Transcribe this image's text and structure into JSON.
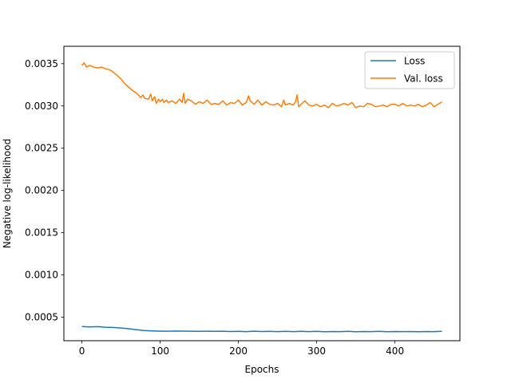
{
  "chart_data": {
    "type": "line",
    "title": "",
    "xlabel": "Epochs",
    "ylabel": "Negative log-likelihood",
    "xlim": [
      -23,
      483
    ],
    "ylim": [
      0.000222,
      0.003706
    ],
    "xticks": [
      0,
      100,
      200,
      300,
      400
    ],
    "xtick_labels": [
      "0",
      "100",
      "200",
      "300",
      "400"
    ],
    "yticks": [
      0.0005,
      0.001,
      0.0015,
      0.002,
      0.0025,
      0.003,
      0.0035
    ],
    "ytick_labels": [
      "0.0005",
      "0.0010",
      "0.0015",
      "0.0020",
      "0.0025",
      "0.0030",
      "0.0035"
    ],
    "grid": false,
    "legend_position": "top-right",
    "series": [
      {
        "name": "Loss",
        "color": "#1f77b4",
        "x": [
          0,
          10,
          20,
          30,
          40,
          50,
          60,
          70,
          80,
          90,
          100,
          110,
          120,
          130,
          140,
          150,
          160,
          170,
          180,
          190,
          200,
          210,
          220,
          230,
          240,
          250,
          260,
          270,
          280,
          290,
          300,
          310,
          320,
          330,
          340,
          350,
          360,
          370,
          380,
          390,
          400,
          410,
          420,
          430,
          440,
          450,
          460
        ],
        "y": [
          0.00039,
          0.000385,
          0.000388,
          0.000382,
          0.000379,
          0.000372,
          0.000364,
          0.000352,
          0.000342,
          0.000338,
          0.000335,
          0.000334,
          0.000336,
          0.000335,
          0.000334,
          0.000333,
          0.000334,
          0.000332,
          0.000334,
          0.000331,
          0.000333,
          0.00033,
          0.000334,
          0.000331,
          0.000332,
          0.00033,
          0.000332,
          0.00033,
          0.000333,
          0.00033,
          0.000332,
          0.000329,
          0.000331,
          0.00033,
          0.000332,
          0.000329,
          0.000331,
          0.00033,
          0.000332,
          0.000329,
          0.000331,
          0.00033,
          0.000331,
          0.000329,
          0.000331,
          0.00033,
          0.000332
        ]
      },
      {
        "name": "Val. loss",
        "color": "#ff7f0e",
        "x": [
          0,
          3,
          6,
          10,
          15,
          20,
          25,
          30,
          35,
          40,
          45,
          50,
          55,
          60,
          65,
          70,
          75,
          78,
          80,
          85,
          88,
          90,
          93,
          95,
          98,
          100,
          103,
          105,
          108,
          110,
          115,
          120,
          125,
          128,
          130,
          132,
          135,
          140,
          145,
          150,
          155,
          160,
          165,
          170,
          175,
          180,
          185,
          190,
          195,
          200,
          205,
          210,
          213,
          215,
          220,
          225,
          230,
          235,
          240,
          245,
          250,
          255,
          258,
          260,
          265,
          270,
          273,
          275,
          277,
          280,
          285,
          290,
          295,
          300,
          305,
          310,
          315,
          320,
          325,
          330,
          335,
          340,
          345,
          350,
          355,
          360,
          365,
          370,
          375,
          380,
          385,
          390,
          395,
          400,
          405,
          410,
          415,
          420,
          425,
          430,
          435,
          440,
          445,
          450,
          455,
          460
        ],
        "y": [
          0.00348,
          0.00351,
          0.00346,
          0.00348,
          0.00346,
          0.00345,
          0.00346,
          0.00344,
          0.00343,
          0.0034,
          0.00336,
          0.00332,
          0.00326,
          0.00322,
          0.00318,
          0.00315,
          0.0031,
          0.00313,
          0.00309,
          0.00308,
          0.00314,
          0.00306,
          0.00311,
          0.00303,
          0.00308,
          0.00305,
          0.00308,
          0.00304,
          0.00307,
          0.00304,
          0.00306,
          0.00303,
          0.00308,
          0.00304,
          0.00315,
          0.00303,
          0.00308,
          0.00306,
          0.00302,
          0.00305,
          0.00303,
          0.00307,
          0.00302,
          0.00303,
          0.00302,
          0.00306,
          0.00301,
          0.00304,
          0.00303,
          0.00307,
          0.00301,
          0.00304,
          0.00312,
          0.00306,
          0.00302,
          0.00307,
          0.00301,
          0.00305,
          0.00302,
          0.00301,
          0.00303,
          0.00299,
          0.00307,
          0.00301,
          0.00303,
          0.00301,
          0.00305,
          0.00313,
          0.00299,
          0.00302,
          0.00306,
          0.00301,
          0.003,
          0.00302,
          0.00299,
          0.00301,
          0.00298,
          0.00303,
          0.003,
          0.00301,
          0.00303,
          0.00301,
          0.00304,
          0.00298,
          0.003,
          0.00299,
          0.00303,
          0.00302,
          0.00299,
          0.003,
          0.00301,
          0.00299,
          0.00302,
          0.00302,
          0.003,
          0.00303,
          0.003,
          0.00301,
          0.003,
          0.00302,
          0.00299,
          0.00301,
          0.00304,
          0.00299,
          0.00302,
          0.00305
        ]
      }
    ]
  }
}
